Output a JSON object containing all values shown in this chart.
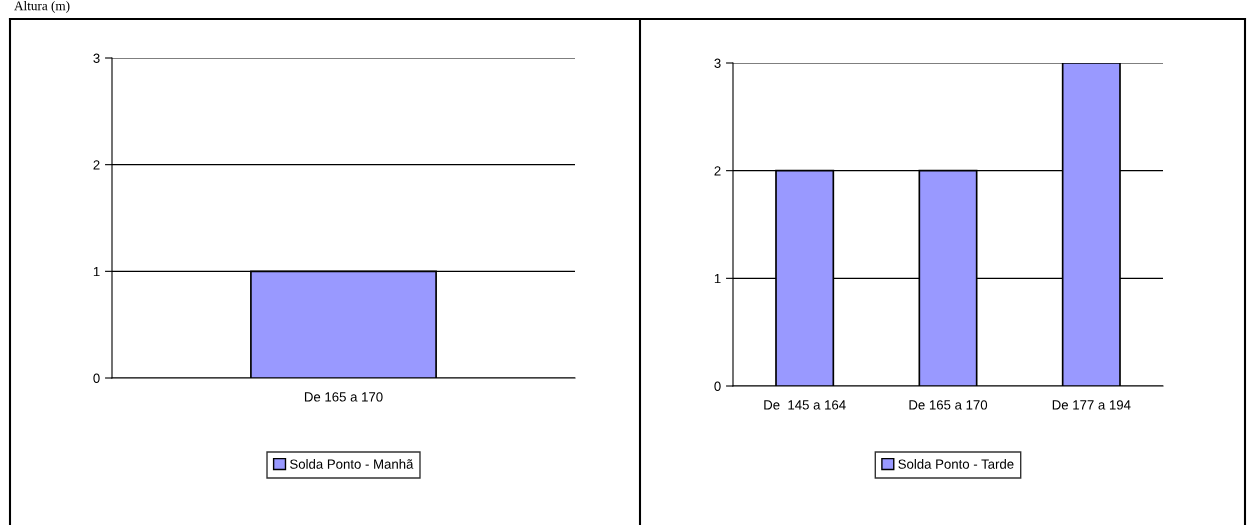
{
  "chart_data": [
    {
      "type": "bar",
      "categories": [
        "De 165 a 170"
      ],
      "series": [
        {
          "name": "Solda Ponto - Manhã",
          "color": "#9999ff",
          "values": [
            1
          ]
        }
      ],
      "ylim": [
        0,
        3
      ],
      "yticks": [
        0,
        1,
        2,
        3
      ],
      "grid": "y",
      "legend": "bottom",
      "annotations": [
        "Altura (m)"
      ]
    },
    {
      "type": "bar",
      "categories": [
        "De  145 a 164",
        "De 165 a 170",
        "De 177 a 194"
      ],
      "series": [
        {
          "name": "Solda Ponto - Tarde",
          "color": "#9999ff",
          "values": [
            2,
            2,
            3
          ]
        }
      ],
      "ylim": [
        0,
        3
      ],
      "yticks": [
        0,
        1,
        2,
        3
      ],
      "grid": "y",
      "legend": "bottom"
    }
  ]
}
